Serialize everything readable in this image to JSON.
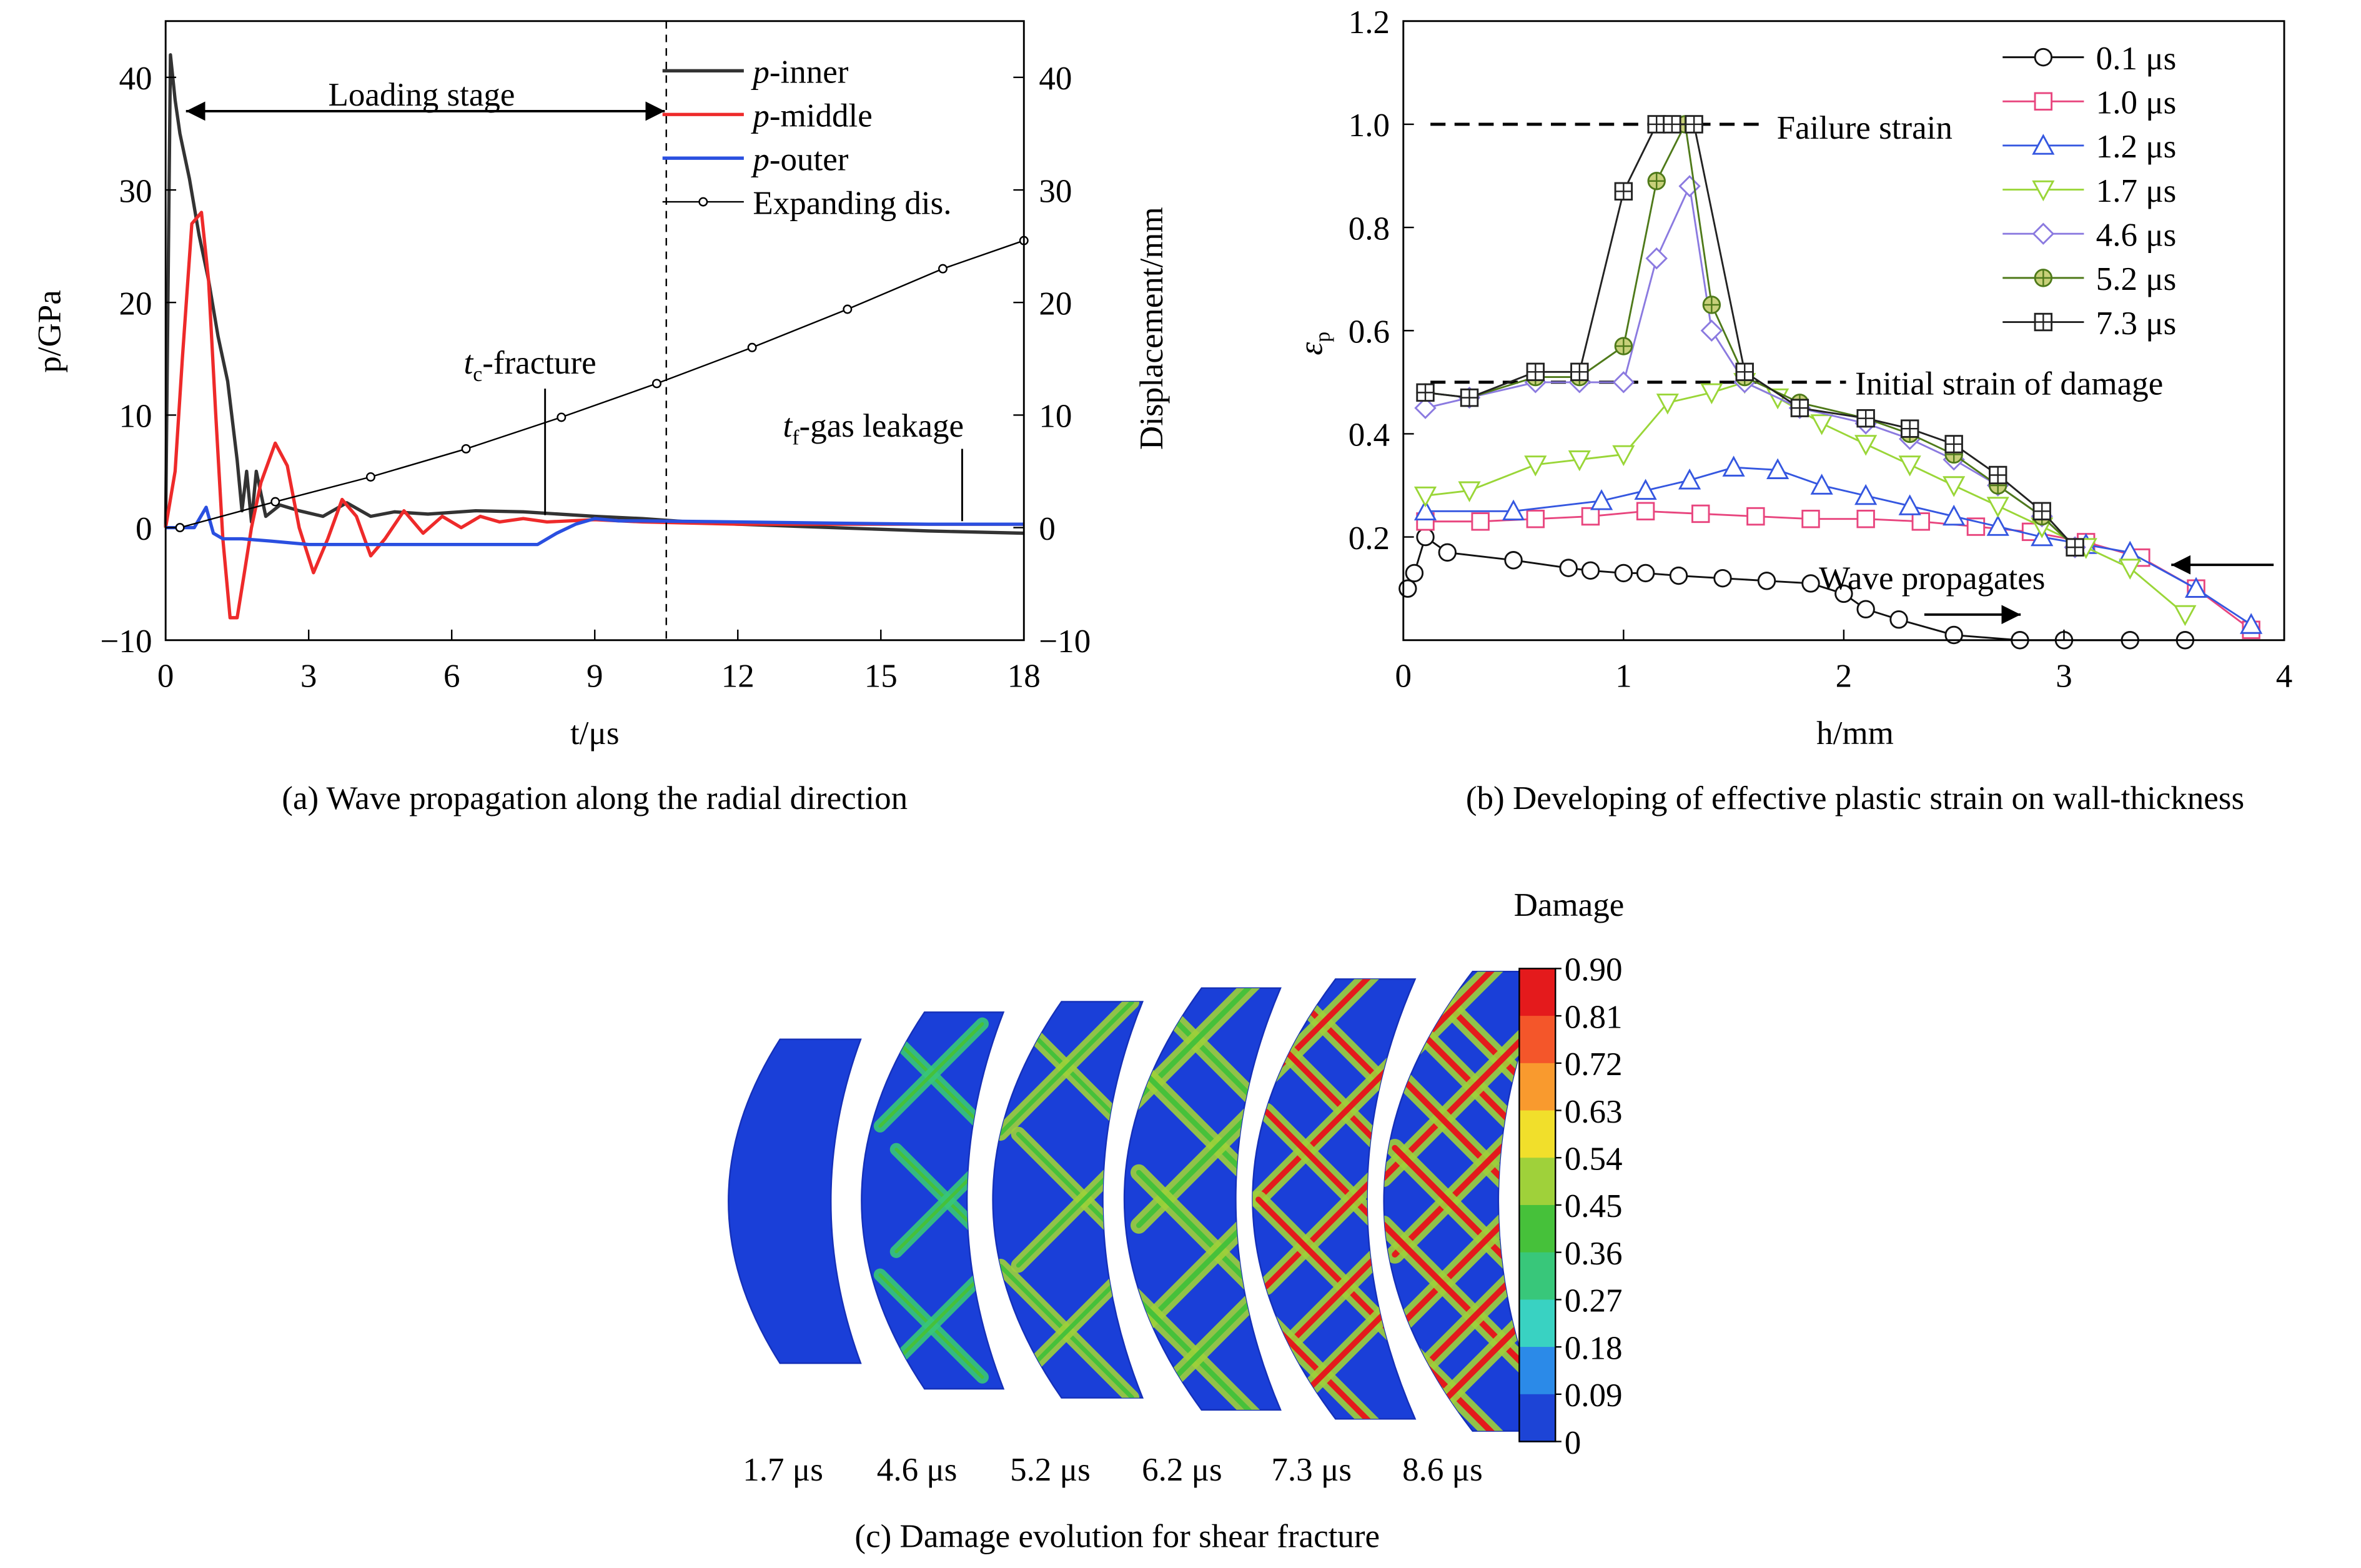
{
  "chart_data": [
    {
      "id": "a",
      "type": "line",
      "caption": "(a) Wave propagation along the radial direction",
      "xlabel": "t/μs",
      "ylabel_left": "p/GPa",
      "ylabel_right": "Displacement/mm",
      "xlim": [
        0,
        18
      ],
      "ylim": [
        -10,
        45
      ],
      "xticks": [
        0,
        3,
        6,
        9,
        12,
        15,
        18
      ],
      "yticks": [
        -10,
        0,
        10,
        20,
        30,
        40
      ],
      "yticks_right": [
        -10,
        0,
        10,
        20,
        30,
        40
      ],
      "legend_position": "top-right",
      "series": [
        {
          "name": "p-inner",
          "color": "#333333",
          "x": [
            0,
            0.1,
            0.2,
            0.3,
            0.5,
            0.7,
            0.9,
            1.1,
            1.3,
            1.5,
            1.6,
            1.7,
            1.8,
            1.9,
            2.1,
            2.4,
            2.8,
            3.3,
            3.8,
            4.3,
            4.8,
            5.5,
            6.5,
            7.5,
            9,
            10,
            11,
            12,
            14,
            16,
            18
          ],
          "y": [
            0,
            42,
            38,
            35,
            31,
            26,
            22,
            17,
            13,
            6,
            1.5,
            5,
            0.5,
            5,
            1,
            2,
            1.5,
            1,
            2.2,
            1,
            1.4,
            1.2,
            1.5,
            1.4,
            1,
            0.8,
            0.5,
            0.3,
            0,
            -0.3,
            -0.5
          ]
        },
        {
          "name": "p-middle",
          "color": "#ee2a2a",
          "x": [
            0,
            0.2,
            0.35,
            0.55,
            0.75,
            0.9,
            1.05,
            1.2,
            1.35,
            1.5,
            1.65,
            1.8,
            2.0,
            2.3,
            2.55,
            2.8,
            3.1,
            3.4,
            3.7,
            4.0,
            4.3,
            4.6,
            5.0,
            5.4,
            5.8,
            6.2,
            6.6,
            7.0,
            7.5,
            8.0,
            9.0,
            10,
            12,
            14,
            16,
            18
          ],
          "y": [
            0,
            5,
            15,
            27,
            28,
            22,
            10,
            -1,
            -8,
            -8,
            -4,
            0,
            4,
            7.5,
            5.5,
            0,
            -4,
            -1,
            2.5,
            1,
            -2.5,
            -1,
            1.5,
            -0.5,
            1,
            0,
            1,
            0.5,
            0.8,
            0.5,
            0.7,
            0.5,
            0.3,
            0.3,
            0.3,
            0.3
          ]
        },
        {
          "name": "p-outer",
          "color": "#2a4fe0",
          "x": [
            0,
            0.6,
            0.85,
            1.0,
            1.2,
            1.6,
            2.2,
            3,
            4,
            5,
            6,
            7,
            7.8,
            8.2,
            8.6,
            9,
            9.5,
            10,
            12,
            14,
            16,
            18
          ],
          "y": [
            0,
            0,
            1.8,
            -0.5,
            -1,
            -1,
            -1.2,
            -1.5,
            -1.5,
            -1.5,
            -1.5,
            -1.5,
            -1.5,
            -0.5,
            0.3,
            0.8,
            0.6,
            0.6,
            0.5,
            0.4,
            0.3,
            0.3
          ]
        },
        {
          "name": "Expanding dis.",
          "color": "#000000",
          "marker": "circle",
          "x": [
            0.3,
            2.3,
            4.3,
            6.3,
            8.3,
            10.3,
            12.3,
            14.3,
            16.3,
            18
          ],
          "y": [
            0,
            2.3,
            4.5,
            7,
            9.8,
            12.8,
            16,
            19.4,
            23,
            25.5
          ]
        }
      ],
      "annotations": [
        {
          "text": "Loading stage",
          "x": [
            0.3,
            10.5
          ],
          "y": 37
        },
        {
          "text_main": "t",
          "text_sub": "c",
          "text_tail": "-fracture",
          "x": 7.9,
          "y": 1.5
        },
        {
          "text_main": "t",
          "text_sub": "f",
          "text_tail": "-gas leakage",
          "x": 16.8,
          "y": 0.3
        }
      ],
      "vline_x": 10.5
    },
    {
      "id": "b",
      "type": "line",
      "caption": "(b) Developing of effective plastic strain on wall-thickness",
      "xlabel": "h/mm",
      "ylabel_main": "ε",
      "ylabel_sub": "p",
      "xlim": [
        0,
        4
      ],
      "ylim": [
        0,
        1.2
      ],
      "xticks": [
        0,
        1,
        2,
        3,
        4
      ],
      "yticks": [
        0.2,
        0.4,
        0.6,
        0.8,
        1.0,
        1.2
      ],
      "legend_position": "top-right",
      "hlines": [
        {
          "y": 1.0,
          "label": "Failure strain"
        },
        {
          "y": 0.5,
          "label": "Initial strain of damage"
        }
      ],
      "annotations": [
        {
          "text": "Wave propagates"
        }
      ],
      "series": [
        {
          "name": "0.1 μs",
          "color": "#111111",
          "marker": "circle",
          "x": [
            0.02,
            0.05,
            0.1,
            0.2,
            0.5,
            0.75,
            0.85,
            1.0,
            1.1,
            1.25,
            1.45,
            1.65,
            1.85,
            2.0,
            2.1,
            2.25,
            2.5,
            2.8,
            3.0,
            3.3,
            3.55
          ],
          "y": [
            0.1,
            0.13,
            0.2,
            0.17,
            0.155,
            0.14,
            0.135,
            0.13,
            0.13,
            0.125,
            0.12,
            0.115,
            0.11,
            0.09,
            0.06,
            0.04,
            0.01,
            0.0,
            0.0,
            0.0,
            0.0
          ]
        },
        {
          "name": "1.0 μs",
          "color": "#e8457e",
          "marker": "square",
          "x": [
            0.1,
            0.35,
            0.6,
            0.85,
            1.1,
            1.35,
            1.6,
            1.85,
            2.1,
            2.35,
            2.6,
            2.85,
            3.1,
            3.35,
            3.6,
            3.85
          ],
          "y": [
            0.23,
            0.23,
            0.235,
            0.24,
            0.25,
            0.245,
            0.24,
            0.235,
            0.235,
            0.23,
            0.22,
            0.21,
            0.19,
            0.16,
            0.1,
            0.02
          ]
        },
        {
          "name": "1.2 μs",
          "color": "#3557e0",
          "marker": "triangle-up",
          "x": [
            0.1,
            0.5,
            0.9,
            1.1,
            1.3,
            1.5,
            1.7,
            1.9,
            2.1,
            2.3,
            2.5,
            2.7,
            2.9,
            3.1,
            3.3,
            3.6,
            3.85
          ],
          "y": [
            0.25,
            0.25,
            0.27,
            0.29,
            0.31,
            0.335,
            0.33,
            0.3,
            0.28,
            0.26,
            0.24,
            0.22,
            0.2,
            0.185,
            0.17,
            0.1,
            0.03
          ]
        },
        {
          "name": "1.7 μs",
          "color": "#9ad638",
          "marker": "triangle-down",
          "x": [
            0.1,
            0.3,
            0.6,
            0.8,
            1.0,
            1.2,
            1.4,
            1.55,
            1.7,
            1.9,
            2.1,
            2.3,
            2.5,
            2.7,
            2.9,
            3.1,
            3.3,
            3.55
          ],
          "y": [
            0.28,
            0.29,
            0.34,
            0.35,
            0.36,
            0.46,
            0.48,
            0.5,
            0.47,
            0.42,
            0.38,
            0.34,
            0.3,
            0.26,
            0.22,
            0.18,
            0.14,
            0.05
          ]
        },
        {
          "name": "4.6 μs",
          "color": "#8b7ae0",
          "marker": "diamond",
          "x": [
            0.1,
            0.3,
            0.6,
            0.8,
            1.0,
            1.15,
            1.3,
            1.4,
            1.55,
            1.8,
            2.1,
            2.3,
            2.5,
            2.7,
            2.9,
            3.05
          ],
          "y": [
            0.45,
            0.47,
            0.5,
            0.5,
            0.5,
            0.74,
            0.88,
            0.6,
            0.5,
            0.45,
            0.42,
            0.39,
            0.35,
            0.3,
            0.24,
            0.18
          ]
        },
        {
          "name": "5.2 μs",
          "color": "#4f7a1a",
          "marker": "circle-plus",
          "x": [
            0.1,
            0.3,
            0.6,
            0.8,
            1.0,
            1.15,
            1.28,
            1.4,
            1.55,
            1.8,
            2.1,
            2.3,
            2.5,
            2.7,
            2.9,
            3.05
          ],
          "y": [
            0.48,
            0.47,
            0.51,
            0.51,
            0.57,
            0.89,
            1.0,
            0.65,
            0.51,
            0.46,
            0.43,
            0.4,
            0.36,
            0.3,
            0.24,
            0.18
          ]
        },
        {
          "name": "7.3 μs",
          "color": "#222222",
          "marker": "square-plus",
          "x": [
            0.1,
            0.3,
            0.6,
            0.8,
            1.0,
            1.15,
            1.22,
            1.32,
            1.55,
            1.8,
            2.1,
            2.3,
            2.5,
            2.7,
            2.9,
            3.05
          ],
          "y": [
            0.48,
            0.47,
            0.52,
            0.52,
            0.87,
            1.0,
            1.0,
            1.0,
            0.52,
            0.45,
            0.43,
            0.41,
            0.38,
            0.32,
            0.25,
            0.18
          ]
        }
      ]
    },
    {
      "id": "c",
      "type": "heatmap",
      "caption": "(c) Damage evolution for shear fracture",
      "colorbar_title": "Damage",
      "colorbar_ticks": [
        "0.90",
        "0.81",
        "0.72",
        "0.63",
        "0.54",
        "0.45",
        "0.36",
        "0.27",
        "0.18",
        "0.09",
        "0"
      ],
      "colorbar_colors": [
        "#e41a1c",
        "#f4562a",
        "#f99a2e",
        "#f1df2b",
        "#9fd13a",
        "#46c13a",
        "#38c77a",
        "#39d2c2",
        "#2b8ae8",
        "#1d44d6"
      ],
      "snapshots": [
        {
          "label": "1.7 μs",
          "bands": 0,
          "intensity": 0
        },
        {
          "label": "4.6 μs",
          "bands": 3,
          "intensity": 0.3
        },
        {
          "label": "5.2 μs",
          "bands": 3,
          "intensity": 0.55
        },
        {
          "label": "6.2 μs",
          "bands": 4,
          "intensity": 0.8
        },
        {
          "label": "7.3 μs",
          "bands": 5,
          "intensity": 0.92
        },
        {
          "label": "8.6 μs",
          "bands": 6,
          "intensity": 1.0
        }
      ]
    }
  ]
}
